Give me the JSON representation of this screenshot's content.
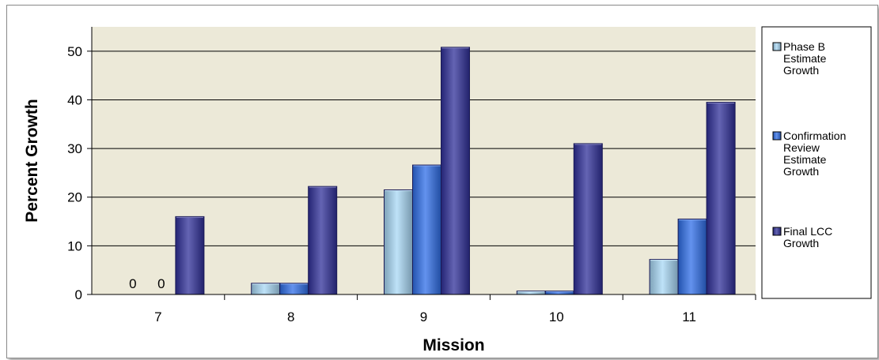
{
  "chart_data": {
    "type": "bar",
    "title": "",
    "xlabel": "Mission",
    "ylabel": "Percent Growth",
    "categories": [
      "7",
      "8",
      "9",
      "10",
      "11"
    ],
    "ylim": [
      0,
      55
    ],
    "yticks": [
      0,
      10,
      20,
      30,
      40,
      50
    ],
    "grid": true,
    "legend_position": "right",
    "series": [
      {
        "name": "Phase B Estimate Growth",
        "legend_lines": [
          "Phase B",
          "Estimate",
          "Growth"
        ],
        "color": "#a8d8f5",
        "values": [
          0,
          2.3,
          21.5,
          0.7,
          7.2
        ],
        "data_labels": [
          "0",
          "",
          "",
          "",
          ""
        ]
      },
      {
        "name": "Confirmation Review Estimate Growth",
        "legend_lines": [
          "Confirmation",
          "Review",
          "Estimate",
          "Growth"
        ],
        "color": "#2f6ee8",
        "values": [
          0,
          2.3,
          26.6,
          0.7,
          15.5
        ],
        "data_labels": [
          "0",
          "",
          "",
          "",
          ""
        ]
      },
      {
        "name": "Final LCC Growth",
        "legend_lines": [
          "Final LCC",
          "Growth"
        ],
        "color": "#30309a",
        "values": [
          16.0,
          22.2,
          50.8,
          31.0,
          39.5
        ],
        "data_labels": [
          "",
          "",
          "",
          "",
          ""
        ]
      }
    ],
    "plot_background": "#ece9d8"
  }
}
